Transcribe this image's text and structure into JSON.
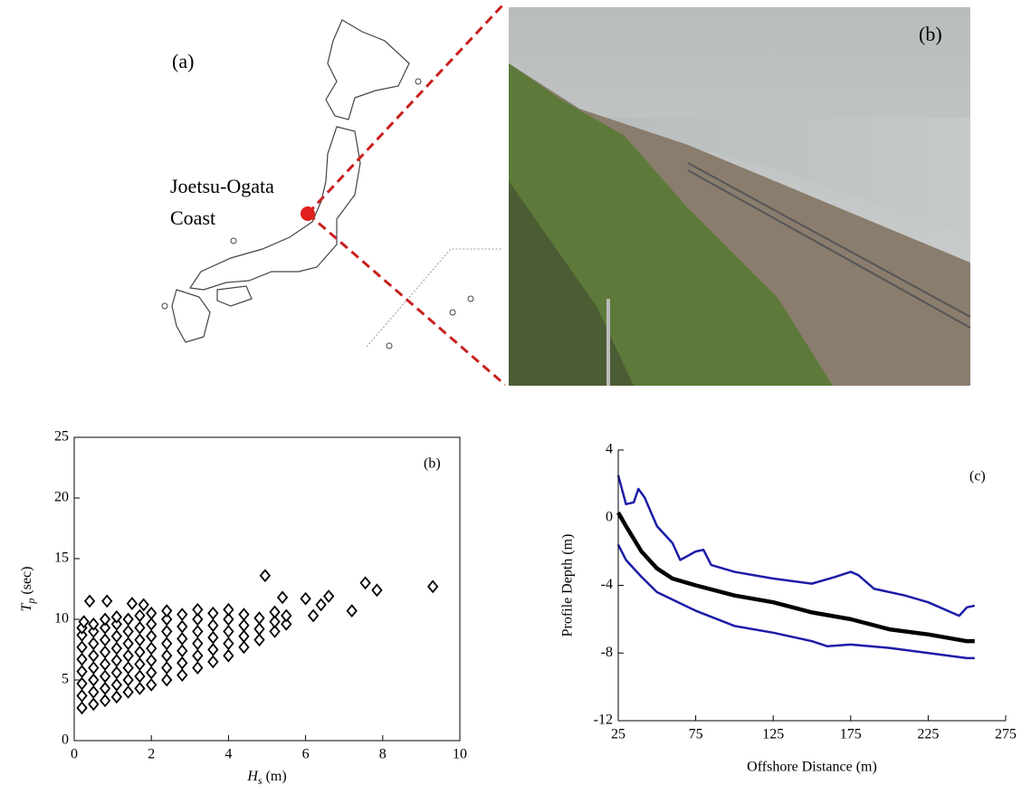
{
  "panel_a": {
    "label": "(a)",
    "site_line1": "Joetsu-Ogata",
    "site_line2": "Coast"
  },
  "panel_photo": {
    "label": "(b)"
  },
  "chart_data": [
    {
      "type": "scatter",
      "panel_label": "(b)",
      "x_label": {
        "symbol": "H",
        "subscript": "s",
        "unit": "(m)"
      },
      "y_label": {
        "symbol": "T",
        "subscript": "p",
        "unit": "(sec)"
      },
      "xlim": [
        0,
        10
      ],
      "xticks": [
        0,
        2,
        4,
        6,
        8,
        10
      ],
      "ylim": [
        0,
        25
      ],
      "yticks": [
        0,
        5,
        10,
        15,
        20,
        25
      ],
      "color": "#000000",
      "marker": "diamond",
      "x": [
        0.2,
        0.2,
        0.2,
        0.2,
        0.2,
        0.2,
        0.2,
        0.2,
        0.5,
        0.5,
        0.5,
        0.5,
        0.5,
        0.5,
        0.5,
        0.5,
        0.8,
        0.8,
        0.8,
        0.8,
        0.8,
        0.8,
        0.8,
        0.8,
        1.1,
        1.1,
        1.1,
        1.1,
        1.1,
        1.1,
        1.1,
        1.1,
        1.4,
        1.4,
        1.4,
        1.4,
        1.4,
        1.4,
        1.4,
        1.7,
        1.7,
        1.7,
        1.7,
        1.7,
        1.7,
        1.7,
        2.0,
        2.0,
        2.0,
        2.0,
        2.0,
        2.0,
        2.0,
        2.4,
        2.4,
        2.4,
        2.4,
        2.4,
        2.4,
        2.4,
        2.8,
        2.8,
        2.8,
        2.8,
        2.8,
        2.8,
        3.2,
        3.2,
        3.2,
        3.2,
        3.2,
        3.2,
        3.6,
        3.6,
        3.6,
        3.6,
        3.6,
        4.0,
        4.0,
        4.0,
        4.0,
        4.0,
        4.4,
        4.4,
        4.4,
        4.4,
        4.8,
        4.8,
        4.8,
        5.2,
        5.2,
        5.2,
        5.5,
        5.5,
        9.3,
        7.85,
        7.55,
        4.95,
        7.2,
        6.6,
        6.4,
        6.0,
        6.2,
        5.4,
        0.4,
        0.85,
        1.8,
        1.5,
        0.25
      ],
      "y": [
        2.7,
        3.7,
        4.7,
        5.7,
        6.7,
        7.7,
        8.7,
        9.3,
        3.0,
        4,
        5,
        6,
        7,
        8,
        9,
        9.6,
        3.3,
        4.3,
        5.3,
        6.3,
        7.3,
        8.3,
        9.3,
        10,
        3.6,
        4.6,
        5.6,
        6.6,
        7.6,
        8.6,
        9.6,
        10.2,
        4,
        5,
        6,
        7,
        8,
        9,
        10,
        4.3,
        5.3,
        6.3,
        7.3,
        8.3,
        9.3,
        10.3,
        4.6,
        5.6,
        6.6,
        7.6,
        8.6,
        9.6,
        10.5,
        5,
        6,
        7,
        8,
        9,
        10,
        10.7,
        5.4,
        6.4,
        7.4,
        8.4,
        9.4,
        10.4,
        6,
        7,
        8,
        9,
        10,
        10.8,
        6.5,
        7.5,
        8.5,
        9.5,
        10.5,
        7,
        8,
        9,
        10,
        10.8,
        7.7,
        8.6,
        9.5,
        10.4,
        8.3,
        9.2,
        10.1,
        9.0,
        9.8,
        10.6,
        9.6,
        10.3,
        12.7,
        12.4,
        13.0,
        13.6,
        10.7,
        11.9,
        11.2,
        11.7,
        10.3,
        11.8,
        11.5,
        11.5,
        11.2,
        11.3,
        9.8
      ]
    },
    {
      "type": "line",
      "panel_label": "(c)",
      "x_label": "Offshore Distance (m)",
      "y_label": "Profile Depth (m)",
      "xlim": [
        25,
        275
      ],
      "xticks": [
        25,
        75,
        125,
        175,
        225,
        275
      ],
      "ylim": [
        -12,
        4
      ],
      "yticks": [
        -12,
        -8,
        -4,
        0,
        4
      ],
      "series": [
        {
          "color": "#1c1ca8",
          "width": 2.5,
          "x": [
            25,
            30,
            35,
            38,
            42,
            50,
            60,
            65,
            75,
            80,
            85,
            100,
            125,
            150,
            165,
            175,
            180,
            190,
            210,
            225,
            245,
            250,
            255
          ],
          "values": [
            2.5,
            0.8,
            0.9,
            1.7,
            1.2,
            -0.5,
            -1.5,
            -2.5,
            -2.0,
            -1.9,
            -2.8,
            -3.2,
            -3.6,
            -3.9,
            -3.5,
            -3.2,
            -3.4,
            -4.2,
            -4.6,
            -5.0,
            -5.8,
            -5.3,
            -5.2
          ]
        },
        {
          "color": "#000000",
          "width": 4.5,
          "x": [
            25,
            30,
            40,
            50,
            60,
            75,
            100,
            125,
            150,
            175,
            200,
            225,
            250,
            255
          ],
          "values": [
            0.3,
            -0.5,
            -2.0,
            -3.0,
            -3.6,
            -4.0,
            -4.6,
            -5.0,
            -5.6,
            -6.0,
            -6.6,
            -6.9,
            -7.3,
            -7.3
          ]
        },
        {
          "color": "#1c1ca8",
          "width": 2.5,
          "x": [
            25,
            30,
            40,
            50,
            75,
            100,
            125,
            150,
            160,
            175,
            200,
            225,
            250,
            255
          ],
          "values": [
            -1.6,
            -2.5,
            -3.5,
            -4.4,
            -5.5,
            -6.4,
            -6.8,
            -7.3,
            -7.6,
            -7.5,
            -7.7,
            -8.0,
            -8.3,
            -8.3
          ]
        }
      ]
    }
  ]
}
